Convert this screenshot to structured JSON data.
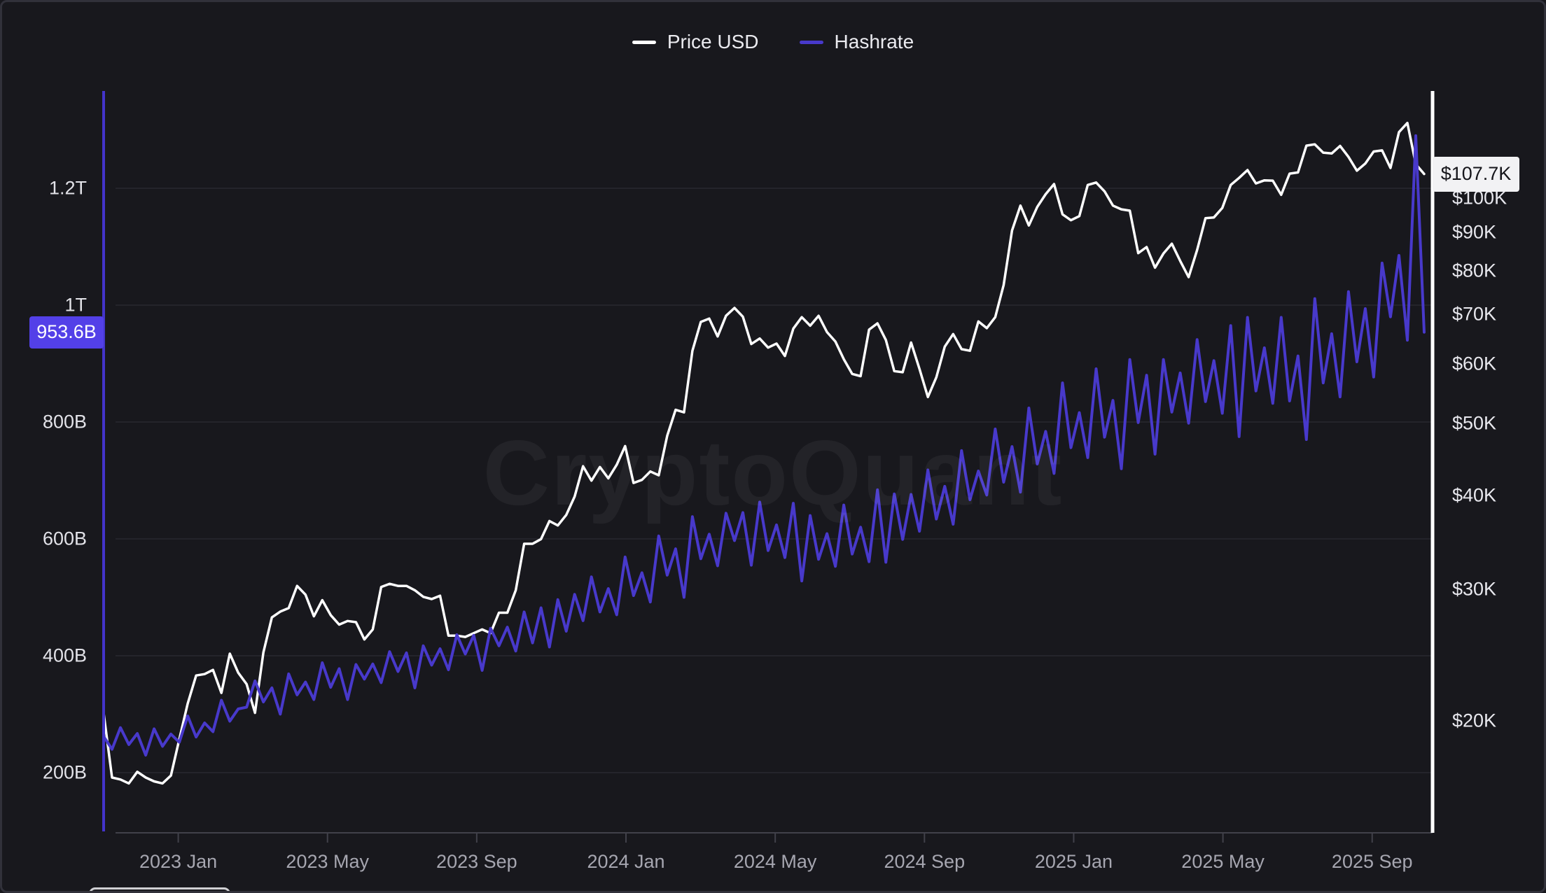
{
  "legend": {
    "price_label": "Price USD",
    "hashrate_label": "Hashrate"
  },
  "watermark": {
    "text": "CryptoQuant"
  },
  "badges": {
    "hashrate_current": "953.6B",
    "price_current": "$107.7K"
  },
  "colors": {
    "background": "#18181d",
    "price_line": "#ffffff",
    "hashrate_line": "#4839cb",
    "hashrate_axis_line": "#4334cb",
    "price_axis_line": "#ffffff",
    "hashrate_badge_bg": "#5340e8",
    "price_badge_bg": "#f2f2f4",
    "gridline": "#24242b",
    "x_axis_line": "#41414a"
  },
  "chart_data": {
    "type": "line",
    "title": "",
    "x_range": [
      "2022-11",
      "2025-10"
    ],
    "x_resolution": "weekly",
    "x_total_months": 35.6,
    "legend_position": "top-center",
    "grid": "horizontal-left-axis-only",
    "left_axis": {
      "label": "Hashrate",
      "scale": "linear",
      "ticks": [
        {
          "label": "1.2T",
          "value": 1200
        },
        {
          "label": "1T",
          "value": 1000
        },
        {
          "label": "800B",
          "value": 800
        },
        {
          "label": "600B",
          "value": 600
        },
        {
          "label": "400B",
          "value": 400
        },
        {
          "label": "200B",
          "value": 200
        }
      ]
    },
    "right_axis": {
      "label": "Price USD",
      "scale": "log",
      "ticks": [
        {
          "label": "$100K",
          "value": 100
        },
        {
          "label": "$90K",
          "value": 90
        },
        {
          "label": "$80K",
          "value": 80
        },
        {
          "label": "$70K",
          "value": 70
        },
        {
          "label": "$60K",
          "value": 60
        },
        {
          "label": "$50K",
          "value": 50
        },
        {
          "label": "$40K",
          "value": 40
        },
        {
          "label": "$30K",
          "value": 30
        },
        {
          "label": "$20K",
          "value": 20
        }
      ]
    },
    "x_axis": {
      "ticks": [
        {
          "label": "2023 Jan",
          "m": 2
        },
        {
          "label": "2023 May",
          "m": 6
        },
        {
          "label": "2023 Sep",
          "m": 10
        },
        {
          "label": "2024 Jan",
          "m": 14
        },
        {
          "label": "2024 May",
          "m": 18
        },
        {
          "label": "2024 Sep",
          "m": 22
        },
        {
          "label": "2025 Jan",
          "m": 26
        },
        {
          "label": "2025 May",
          "m": 30
        },
        {
          "label": "2025 Sep",
          "m": 34
        }
      ]
    },
    "series": [
      {
        "name": "Price USD",
        "axis": "right",
        "unit": "USD thousands",
        "color": "#ffffff",
        "latest_label": "$107.7K",
        "values": [
          20.5,
          16.8,
          16.7,
          16.5,
          17.1,
          16.8,
          16.6,
          16.5,
          16.9,
          18.9,
          21.1,
          23.0,
          23.1,
          23.4,
          21.8,
          24.6,
          23.2,
          22.4,
          20.5,
          24.7,
          27.5,
          28.0,
          28.3,
          30.3,
          29.5,
          27.6,
          29.0,
          27.7,
          26.9,
          27.2,
          27.1,
          25.7,
          26.5,
          30.2,
          30.5,
          30.3,
          30.3,
          29.9,
          29.3,
          29.1,
          29.4,
          26.0,
          26.0,
          25.9,
          26.2,
          26.5,
          26.2,
          27.9,
          27.9,
          29.9,
          34.5,
          34.5,
          35.0,
          37.0,
          36.5,
          37.7,
          39.9,
          43.8,
          41.9,
          43.7,
          42.2,
          44.0,
          46.6,
          41.6,
          42.0,
          43.1,
          42.6,
          48.1,
          52.1,
          51.7,
          62.5,
          68.3,
          69.0,
          65.3,
          69.6,
          71.3,
          69.4,
          63.8,
          64.9,
          63.1,
          63.9,
          61.5,
          66.9,
          69.3,
          67.5,
          69.6,
          66.2,
          64.3,
          60.9,
          58.2,
          57.8,
          66.7,
          68.0,
          64.6,
          58.7,
          58.5,
          64.1,
          59.1,
          54.2,
          57.6,
          63.3,
          65.8,
          62.8,
          62.5,
          68.4,
          67.0,
          69.3,
          76.5,
          90.5,
          97.7,
          91.9,
          97.3,
          101.2,
          104.4,
          95.1,
          93.4,
          94.6,
          104.1,
          104.9,
          102.1,
          97.7,
          96.6,
          96.2,
          84.4,
          86.0,
          80.7,
          84.3,
          86.9,
          82.4,
          78.4,
          85.2,
          94.0,
          94.2,
          97.0,
          104.1,
          106.4,
          109.0,
          104.6,
          105.6,
          105.5,
          101.0,
          107.8,
          108.2,
          117.5,
          118.0,
          115.0,
          114.7,
          117.4,
          113.5,
          108.8,
          111.2,
          115.4,
          115.8,
          109.7,
          122.5,
          126.0,
          111.0,
          107.7
        ]
      },
      {
        "name": "Hashrate",
        "axis": "left",
        "unit": "EH/s",
        "color": "#4839cb",
        "latest_label": "953.6B",
        "values": [
          262,
          240,
          277,
          248,
          267,
          230,
          275,
          245,
          266,
          252,
          297,
          261,
          285,
          270,
          324,
          288,
          309,
          312,
          357,
          321,
          345,
          300,
          369,
          333,
          355,
          325,
          388,
          346,
          378,
          325,
          385,
          360,
          386,
          354,
          407,
          373,
          405,
          345,
          417,
          384,
          412,
          376,
          436,
          403,
          435,
          375,
          447,
          417,
          449,
          408,
          475,
          422,
          482,
          415,
          496,
          442,
          505,
          460,
          535,
          475,
          515,
          470,
          569,
          503,
          542,
          492,
          605,
          538,
          583,
          500,
          638,
          566,
          608,
          554,
          644,
          597,
          645,
          555,
          663,
          580,
          624,
          568,
          661,
          528,
          640,
          565,
          609,
          553,
          658,
          574,
          620,
          561,
          684,
          560,
          677,
          599,
          676,
          613,
          718,
          634,
          690,
          625,
          751,
          667,
          716,
          675,
          788,
          697,
          758,
          680,
          824,
          728,
          784,
          712,
          867,
          756,
          816,
          739,
          891,
          774,
          837,
          720,
          907,
          799,
          880,
          745,
          907,
          817,
          884,
          798,
          941,
          835,
          905,
          815,
          965,
          775,
          979,
          853,
          927,
          832,
          979,
          836,
          913,
          770,
          1011,
          867,
          951,
          843,
          1023,
          903,
          994,
          877,
          1072,
          980,
          1085,
          940,
          1290,
          953.6
        ]
      }
    ]
  }
}
